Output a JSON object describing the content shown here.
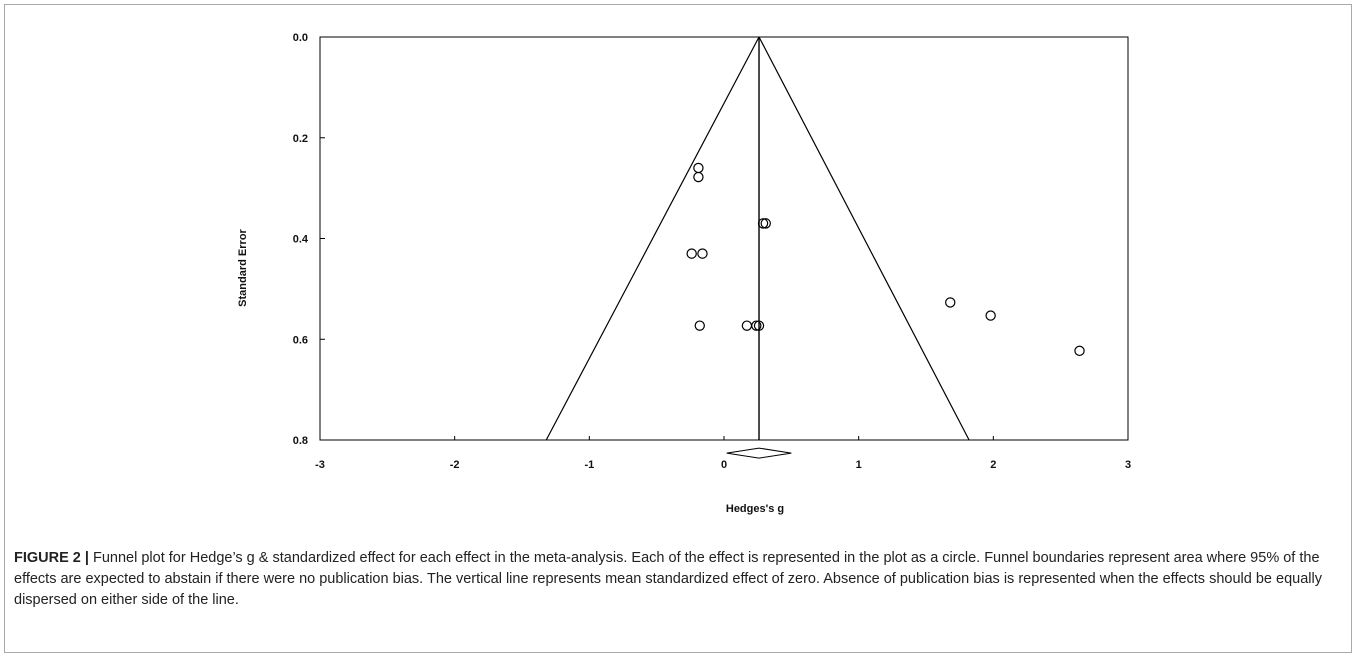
{
  "caption": {
    "label": "FIGURE 2 |",
    "text": " Funnel plot for Hedge’s g & standardized effect for each effect in the meta-analysis. Each of the effect is represented in the plot as a circle. Funnel boundaries represent area where 95% of the effects are expected to abstain if there were no publication bias. The vertical line represents mean standardized effect of zero. Absence of publication bias is represented when the effects should be equally dispersed on either side of the line."
  },
  "chart_data": {
    "type": "scatter",
    "title": "",
    "xlabel": "Hedges's g",
    "ylabel": "Standard Error",
    "xlim": [
      -3,
      3
    ],
    "ylim": [
      0.8,
      0.0
    ],
    "y_inverted": true,
    "xticks": [
      -3,
      -2,
      -1,
      0,
      1,
      2,
      3
    ],
    "xtick_labels": [
      "-3",
      "-2",
      "-1",
      "0",
      "1",
      "2",
      "3"
    ],
    "yticks": [
      0.0,
      0.2,
      0.4,
      0.6,
      0.8
    ],
    "ytick_labels": [
      "0.0",
      "0.2",
      "0.4",
      "0.6",
      "0.8"
    ],
    "grid": false,
    "mean_effect": 0.26,
    "funnel_bottom": [
      -1.32,
      1.82
    ],
    "summary_diamond": {
      "x": [
        0.02,
        0.26,
        0.5
      ],
      "y": 0.826
    },
    "points": [
      {
        "x": -0.19,
        "y": 0.26
      },
      {
        "x": -0.19,
        "y": 0.278
      },
      {
        "x": 0.29,
        "y": 0.37
      },
      {
        "x": 0.31,
        "y": 0.37
      },
      {
        "x": -0.24,
        "y": 0.43
      },
      {
        "x": -0.16,
        "y": 0.43
      },
      {
        "x": -0.18,
        "y": 0.573
      },
      {
        "x": 0.17,
        "y": 0.573
      },
      {
        "x": 0.24,
        "y": 0.573
      },
      {
        "x": 0.26,
        "y": 0.573
      },
      {
        "x": 1.68,
        "y": 0.527
      },
      {
        "x": 1.98,
        "y": 0.553
      },
      {
        "x": 2.64,
        "y": 0.623
      }
    ]
  }
}
